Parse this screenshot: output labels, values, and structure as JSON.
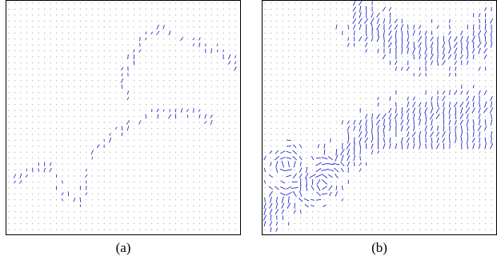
{
  "figure": {
    "panels": [
      {
        "id": "a",
        "caption": "(a)"
      },
      {
        "id": "b",
        "caption": "(b)"
      }
    ],
    "colors": {
      "vector": "#2424c8",
      "grid_dot": "#7a7a7a",
      "frame": "#000000",
      "background": "#ffffff"
    }
  }
}
